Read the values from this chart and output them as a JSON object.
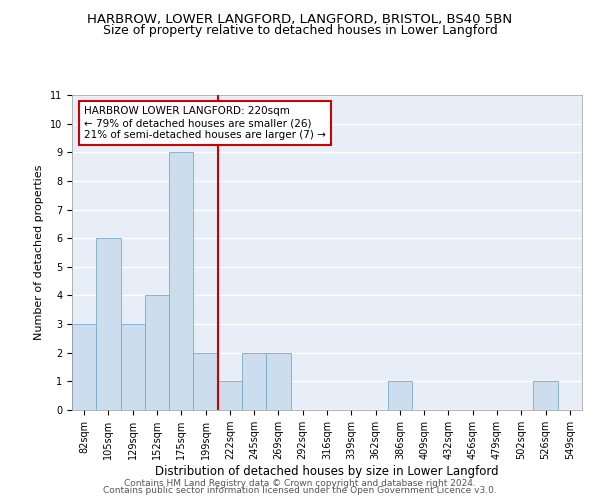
{
  "title1": "HARBROW, LOWER LANGFORD, LANGFORD, BRISTOL, BS40 5BN",
  "title2": "Size of property relative to detached houses in Lower Langford",
  "categories": [
    "82sqm",
    "105sqm",
    "129sqm",
    "152sqm",
    "175sqm",
    "199sqm",
    "222sqm",
    "245sqm",
    "269sqm",
    "292sqm",
    "316sqm",
    "339sqm",
    "362sqm",
    "386sqm",
    "409sqm",
    "432sqm",
    "456sqm",
    "479sqm",
    "502sqm",
    "526sqm",
    "549sqm"
  ],
  "values": [
    3,
    6,
    3,
    4,
    9,
    2,
    1,
    2,
    2,
    0,
    0,
    0,
    0,
    1,
    0,
    0,
    0,
    0,
    0,
    1,
    0
  ],
  "bar_color": "#ccdded",
  "bar_edge_color": "#7aaac8",
  "background_color": "#e8eef8",
  "gridcolor": "#ffffff",
  "ylabel": "Number of detached properties",
  "xlabel": "Distribution of detached houses by size in Lower Langford",
  "ylim": [
    0,
    11
  ],
  "yticks": [
    0,
    1,
    2,
    3,
    4,
    5,
    6,
    7,
    8,
    9,
    10,
    11
  ],
  "vline_color": "#cc0000",
  "annotation_box_text": "HARBROW LOWER LANGFORD: 220sqm\n← 79% of detached houses are smaller (26)\n21% of semi-detached houses are larger (7) →",
  "annotation_box_color": "#cc0000",
  "annotation_fontsize": 7.5,
  "footer1": "Contains HM Land Registry data © Crown copyright and database right 2024.",
  "footer2": "Contains public sector information licensed under the Open Government Licence v3.0.",
  "title1_fontsize": 9.5,
  "title2_fontsize": 9,
  "xlabel_fontsize": 8.5,
  "ylabel_fontsize": 8,
  "tick_fontsize": 7,
  "footer_fontsize": 6.5
}
